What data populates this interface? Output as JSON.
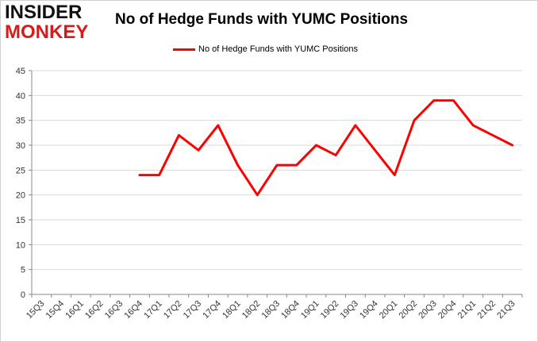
{
  "brand": {
    "line1": "INSIDER",
    "line2": "MONKEY"
  },
  "chart_data": {
    "type": "line",
    "title": "No of Hedge Funds with YUMC Positions",
    "xlabel": "",
    "ylabel": "",
    "ylim": [
      0,
      45
    ],
    "yticks": [
      0,
      5,
      10,
      15,
      20,
      25,
      30,
      35,
      40,
      45
    ],
    "grid": true,
    "legend_position": "top-center",
    "categories": [
      "15Q3",
      "15Q4",
      "16Q1",
      "16Q2",
      "16Q3",
      "16Q4",
      "17Q1",
      "17Q2",
      "17Q3",
      "17Q4",
      "18Q1",
      "18Q2",
      "18Q3",
      "18Q4",
      "19Q1",
      "19Q2",
      "19Q3",
      "19Q4",
      "20Q1",
      "20Q2",
      "20Q3",
      "20Q4",
      "21Q1",
      "21Q2",
      "21Q3"
    ],
    "series": [
      {
        "name": "No of Hedge Funds with YUMC Positions",
        "color": "#ff0000",
        "values": [
          null,
          null,
          null,
          null,
          null,
          24,
          24,
          32,
          29,
          34,
          26,
          20,
          26,
          26,
          30,
          28,
          34,
          29,
          24,
          35,
          39,
          39,
          34,
          32,
          30
        ]
      }
    ]
  }
}
